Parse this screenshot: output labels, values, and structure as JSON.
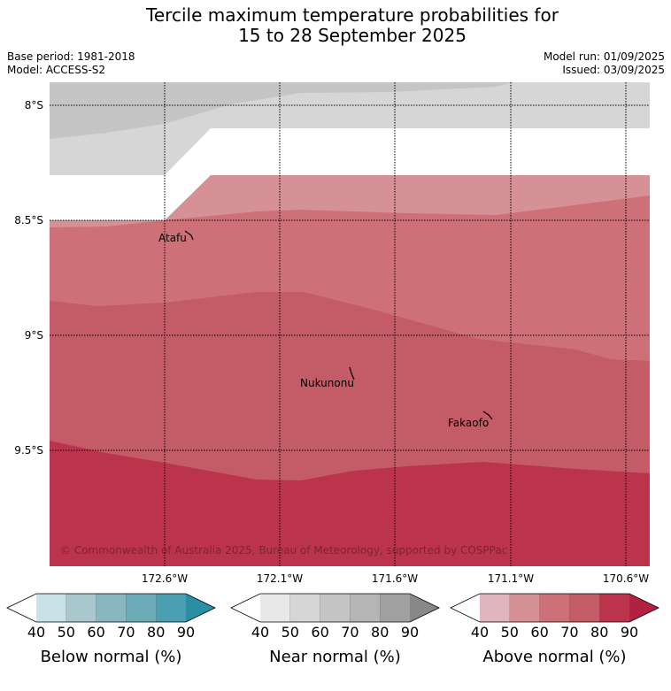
{
  "title_line1": "Tercile maximum temperature probabilities for",
  "title_line2": "15 to 28 September 2025",
  "base_period": "Base period: 1981-2018",
  "model": "Model: ACCESS-S2",
  "model_run": "Model run: 01/09/2025",
  "issued": "Issued: 03/09/2025",
  "lat_labels": [
    "8°S",
    "8.5°S",
    "9°S",
    "9.5°S"
  ],
  "lon_labels": [
    "172.6°W",
    "172.1°W",
    "171.6°W",
    "171.1°W",
    "170.6°W"
  ],
  "places": [
    {
      "name": "Atafu"
    },
    {
      "name": "Nukunonu"
    },
    {
      "name": "Fakaofo"
    }
  ],
  "copyright": "© Commonwealth of Australia 2025, Bureau of Meteorology, supported by COSPPac",
  "colors": {
    "below": [
      "#ffffff",
      "#c9e2e8",
      "#a8c8ce",
      "#88b7c1",
      "#6cacb9",
      "#4aa0b0",
      "#2a8fa4"
    ],
    "near": [
      "#ffffff",
      "#e8e8e8",
      "#d6d6d6",
      "#c5c5c5",
      "#b5b5b5",
      "#a0a0a0",
      "#888888"
    ],
    "above": [
      "#ffffff",
      "#e0b5bd",
      "#d69197",
      "#cd7078",
      "#c35c66",
      "#bc344c",
      "#b42040"
    ]
  },
  "legends": [
    {
      "label": "Below normal (%)",
      "ticks": [
        "40",
        "50",
        "60",
        "70",
        "80",
        "90"
      ]
    },
    {
      "label": "Near normal (%)",
      "ticks": [
        "40",
        "50",
        "60",
        "70",
        "80",
        "90"
      ]
    },
    {
      "label": "Above normal (%)",
      "ticks": [
        "40",
        "50",
        "60",
        "70",
        "80",
        "90"
      ]
    }
  ]
}
